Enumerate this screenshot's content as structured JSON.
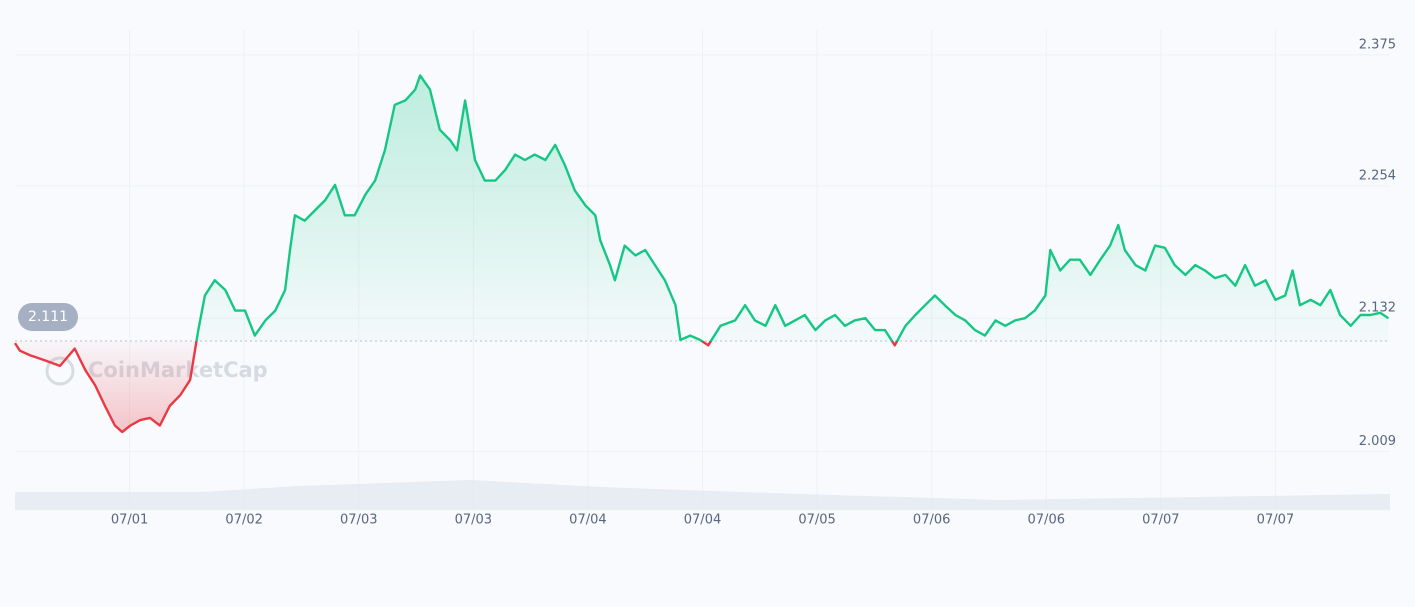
{
  "chart_data": {
    "type": "line",
    "watermark": "CoinMarketCap",
    "baseline": 2.111,
    "colors": {
      "up": "#16c784",
      "down": "#ea3943"
    },
    "grid": true,
    "xlim": [
      0,
      168
    ],
    "xticks": [
      {
        "value": 14,
        "label": "07/01"
      },
      {
        "value": 28,
        "label": "07/02"
      },
      {
        "value": 42,
        "label": "07/03"
      },
      {
        "value": 56,
        "label": "07/03"
      },
      {
        "value": 70,
        "label": "07/04"
      },
      {
        "value": 84,
        "label": "07/04"
      },
      {
        "value": 98,
        "label": "07/05"
      },
      {
        "value": 112,
        "label": "07/06"
      },
      {
        "value": 126,
        "label": "07/06"
      },
      {
        "value": 140,
        "label": "07/07"
      },
      {
        "value": 154,
        "label": "07/07"
      }
    ],
    "ylim": [
      1.955,
      2.398
    ],
    "yticks": [
      2.009,
      2.132,
      2.254,
      2.375
    ],
    "x": [
      0,
      0.6,
      1.8,
      3.7,
      5.5,
      7.3,
      8.6,
      9.8,
      11.0,
      12.2,
      13.1,
      14.1,
      15.3,
      16.5,
      17.7,
      18.9,
      20.2,
      21.4,
      22.4,
      23.2,
      24.4,
      25.7,
      26.9,
      28.1,
      29.3,
      30.6,
      31.8,
      33.0,
      33.6,
      34.2,
      35.4,
      36.7,
      37.9,
      39.1,
      40.3,
      41.5,
      42.8,
      44.0,
      45.2,
      46.4,
      47.7,
      48.9,
      49.5,
      50.7,
      51.9,
      53.2,
      54.0,
      55.0,
      56.2,
      57.4,
      58.7,
      59.9,
      61.1,
      62.3,
      63.5,
      64.8,
      66.0,
      67.2,
      68.4,
      69.7,
      70.9,
      71.5,
      72.7,
      73.3,
      74.5,
      75.8,
      77.0,
      78.2,
      79.4,
      80.7,
      81.3,
      82.5,
      83.7,
      84.7,
      86.2,
      88.0,
      89.2,
      90.4,
      91.7,
      92.9,
      94.1,
      95.3,
      96.5,
      97.8,
      99.0,
      100.2,
      101.4,
      102.6,
      103.9,
      105.1,
      106.3,
      107.5,
      108.8,
      110.0,
      111.2,
      112.4,
      113.6,
      114.9,
      116.1,
      117.3,
      118.5,
      119.8,
      121.0,
      122.2,
      123.4,
      124.6,
      125.9,
      126.5,
      127.7,
      128.9,
      130.1,
      131.4,
      132.6,
      133.8,
      134.8,
      135.6,
      136.9,
      138.1,
      139.3,
      140.5,
      141.7,
      143.0,
      144.2,
      145.4,
      146.6,
      147.9,
      149.1,
      150.3,
      151.5,
      152.8,
      154.0,
      155.2,
      156.1,
      157.0,
      158.3,
      159.5,
      160.7,
      161.9,
      163.2,
      164.4,
      165.6,
      166.8,
      167.8
    ],
    "values": [
      2.109,
      2.102,
      2.098,
      2.093,
      2.088,
      2.104,
      2.084,
      2.07,
      2.051,
      2.033,
      2.027,
      2.033,
      2.038,
      2.04,
      2.033,
      2.051,
      2.061,
      2.075,
      2.121,
      2.153,
      2.167,
      2.158,
      2.139,
      2.139,
      2.116,
      2.13,
      2.139,
      2.158,
      2.195,
      2.227,
      2.222,
      2.232,
      2.241,
      2.255,
      2.227,
      2.227,
      2.246,
      2.259,
      2.287,
      2.329,
      2.333,
      2.343,
      2.356,
      2.343,
      2.306,
      2.296,
      2.287,
      2.333,
      2.278,
      2.259,
      2.259,
      2.269,
      2.283,
      2.278,
      2.283,
      2.278,
      2.292,
      2.273,
      2.25,
      2.236,
      2.227,
      2.204,
      2.181,
      2.167,
      2.199,
      2.19,
      2.195,
      2.181,
      2.167,
      2.144,
      2.112,
      2.116,
      2.112,
      2.107,
      2.125,
      2.13,
      2.144,
      2.13,
      2.125,
      2.144,
      2.125,
      2.13,
      2.135,
      2.121,
      2.13,
      2.135,
      2.125,
      2.13,
      2.132,
      2.121,
      2.121,
      2.107,
      2.125,
      2.135,
      2.144,
      2.153,
      2.144,
      2.135,
      2.13,
      2.121,
      2.116,
      2.13,
      2.125,
      2.13,
      2.132,
      2.139,
      2.153,
      2.195,
      2.176,
      2.186,
      2.186,
      2.172,
      2.186,
      2.199,
      2.218,
      2.195,
      2.181,
      2.176,
      2.199,
      2.197,
      2.181,
      2.172,
      2.181,
      2.176,
      2.169,
      2.172,
      2.162,
      2.181,
      2.162,
      2.167,
      2.149,
      2.153,
      2.176,
      2.144,
      2.149,
      2.144,
      2.158,
      2.135,
      2.125,
      2.135,
      2.135,
      2.137,
      2.132
    ]
  }
}
